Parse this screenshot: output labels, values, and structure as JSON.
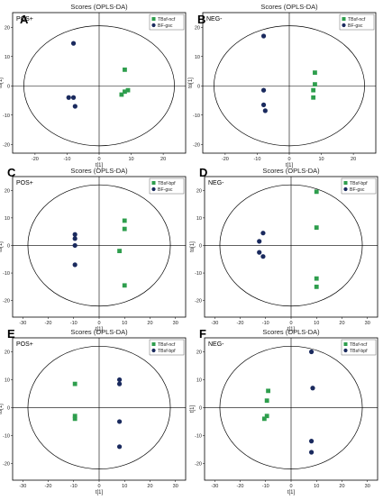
{
  "colors": {
    "green": "#2e9e4d",
    "navy": "#1a2a5e"
  },
  "chart_data": [
    {
      "id": "A",
      "type": "scatter",
      "panel_label": "A",
      "title": "Scores (OPLS-DA)",
      "mode": "POS+",
      "xlabel": "t[1]",
      "ylabel": "to[1]",
      "xlim": [
        -27,
        27
      ],
      "ylim": [
        -23,
        25
      ],
      "xticks": [
        -20,
        -10,
        0,
        10,
        20
      ],
      "yticks": [
        -20,
        -10,
        0,
        10,
        20
      ],
      "ellipse": {
        "rx": 23.5,
        "ry": 20.5
      },
      "series": [
        {
          "name": "TBsf-ncf",
          "marker": "square",
          "color": "#2e9e4d",
          "points": [
            [
              8,
              5.5
            ],
            [
              9,
              -1.5
            ],
            [
              8,
              -2
            ],
            [
              7,
              -3
            ]
          ]
        },
        {
          "name": "BF-gsc",
          "marker": "circle",
          "color": "#1a2a5e",
          "points": [
            [
              -8,
              14.5
            ],
            [
              -9.5,
              -4
            ],
            [
              -8,
              -4
            ],
            [
              -7.5,
              -7
            ]
          ]
        }
      ]
    },
    {
      "id": "B",
      "type": "scatter",
      "panel_label": "B",
      "title": "Scores (OPLS-DA)",
      "mode": "NEG-",
      "xlabel": "t[1]",
      "ylabel": "to[1]",
      "xlim": [
        -27,
        27
      ],
      "ylim": [
        -23,
        25
      ],
      "xticks": [
        -20,
        -10,
        0,
        10,
        20
      ],
      "yticks": [
        -20,
        -10,
        0,
        10,
        20
      ],
      "ellipse": {
        "rx": 23.5,
        "ry": 20.5
      },
      "series": [
        {
          "name": "TBsf-ncf",
          "marker": "square",
          "color": "#2e9e4d",
          "points": [
            [
              8,
              4.5
            ],
            [
              8,
              0.5
            ],
            [
              7.5,
              -1.5
            ],
            [
              7.5,
              -4
            ]
          ]
        },
        {
          "name": "BF-gsc",
          "marker": "circle",
          "color": "#1a2a5e",
          "points": [
            [
              -8,
              17
            ],
            [
              -8,
              -1.5
            ],
            [
              -8,
              -6.5
            ],
            [
              -7.5,
              -8.5
            ]
          ]
        }
      ]
    },
    {
      "id": "C",
      "type": "scatter",
      "panel_label": "C",
      "title": "Scores (OPLS-DA)",
      "mode": "POS+",
      "xlabel": "t[1]",
      "ylabel": "to[1]",
      "xlim": [
        -34,
        34
      ],
      "ylim": [
        -26,
        25
      ],
      "xticks": [
        -30,
        -20,
        -10,
        0,
        10,
        20,
        30
      ],
      "yticks": [
        -20,
        -10,
        0,
        10,
        20
      ],
      "ellipse": {
        "rx": 28,
        "ry": 22
      },
      "series": [
        {
          "name": "TBsf-bpf",
          "marker": "square",
          "color": "#2e9e4d",
          "points": [
            [
              10,
              9
            ],
            [
              10,
              6
            ],
            [
              8,
              -2
            ],
            [
              10,
              -14.5
            ]
          ]
        },
        {
          "name": "BF-gsc",
          "marker": "circle",
          "color": "#1a2a5e",
          "points": [
            [
              -9.5,
              4
            ],
            [
              -9.5,
              2.5
            ],
            [
              -9.5,
              0
            ],
            [
              -9.5,
              -7
            ]
          ]
        }
      ]
    },
    {
      "id": "D",
      "type": "scatter",
      "panel_label": "D",
      "title": "Scores (OPLS-DA)",
      "mode": "NEG-",
      "xlabel": "t[1]",
      "ylabel": "to[1]",
      "xlim": [
        -34,
        34
      ],
      "ylim": [
        -26,
        25
      ],
      "xticks": [
        -30,
        -20,
        -10,
        0,
        10,
        20,
        30
      ],
      "yticks": [
        -20,
        -10,
        0,
        10,
        20
      ],
      "ellipse": {
        "rx": 28,
        "ry": 22
      },
      "series": [
        {
          "name": "TBsf-bpf",
          "marker": "square",
          "color": "#2e9e4d",
          "points": [
            [
              10,
              19.5
            ],
            [
              10,
              6.5
            ],
            [
              10,
              -12
            ],
            [
              10,
              -15
            ]
          ]
        },
        {
          "name": "BF-gsc",
          "marker": "circle",
          "color": "#1a2a5e",
          "points": [
            [
              -11,
              4.5
            ],
            [
              -12.5,
              1.5
            ],
            [
              -12.5,
              -2.5
            ],
            [
              -11,
              -4
            ]
          ]
        }
      ]
    },
    {
      "id": "E",
      "type": "scatter",
      "panel_label": "E",
      "title": "Scores (OPLS-DA)",
      "mode": "POS+",
      "xlabel": "t[1]",
      "ylabel": "to[1]",
      "xlim": [
        -34,
        34
      ],
      "ylim": [
        -26,
        25
      ],
      "xticks": [
        -30,
        -20,
        -10,
        0,
        10,
        20,
        30
      ],
      "yticks": [
        -20,
        -10,
        0,
        10,
        20
      ],
      "ellipse": {
        "rx": 28,
        "ry": 22
      },
      "series": [
        {
          "name": "TBsf-ncf",
          "marker": "square",
          "color": "#2e9e4d",
          "points": [
            [
              -9.5,
              8.5
            ],
            [
              -9.5,
              -3
            ],
            [
              -9.5,
              -4
            ]
          ]
        },
        {
          "name": "TBsf-bpf",
          "marker": "circle",
          "color": "#1a2a5e",
          "points": [
            [
              8,
              10
            ],
            [
              8,
              8.5
            ],
            [
              8,
              -5
            ],
            [
              8,
              -14
            ]
          ]
        }
      ]
    },
    {
      "id": "F",
      "type": "scatter",
      "panel_label": "F",
      "title": "Scores (OPLS-DA)",
      "mode": "NEG-",
      "xlabel": "t[1]",
      "ylabel": "t[1]",
      "xlim": [
        -34,
        34
      ],
      "ylim": [
        -26,
        25
      ],
      "xticks": [
        -30,
        -20,
        -10,
        0,
        10,
        20,
        30
      ],
      "yticks": [
        -20,
        -10,
        0,
        10,
        20
      ],
      "ellipse": {
        "rx": 28,
        "ry": 22
      },
      "series": [
        {
          "name": "TBsf-ncf",
          "marker": "square",
          "color": "#2e9e4d",
          "points": [
            [
              -9,
              6
            ],
            [
              -9.5,
              2.5
            ],
            [
              -9.5,
              -3
            ],
            [
              -10.5,
              -4
            ]
          ]
        },
        {
          "name": "TBsf-bpf",
          "marker": "circle",
          "color": "#1a2a5e",
          "points": [
            [
              8,
              20
            ],
            [
              8.5,
              7
            ],
            [
              8,
              -12
            ],
            [
              8,
              -16
            ]
          ]
        }
      ]
    }
  ]
}
